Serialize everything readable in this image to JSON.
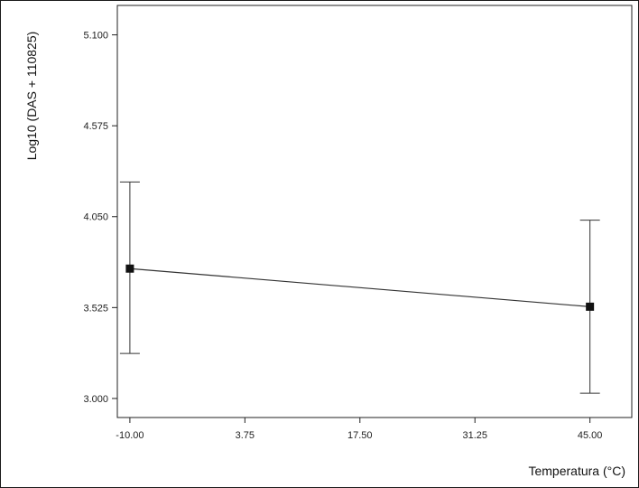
{
  "chart_data": {
    "type": "line",
    "xlabel": "Temperatura (°C)",
    "ylabel": "Log10 (DAS + 110825)",
    "x_ticks": [
      "-10.00",
      "3.75",
      "17.50",
      "31.25",
      "45.00"
    ],
    "y_ticks": [
      "5.100",
      "4.575",
      "4.050",
      "3.525",
      "3.000"
    ],
    "xlim": [
      -11.5,
      50
    ],
    "ylim": [
      2.89,
      5.27
    ],
    "series": [
      {
        "x": [
          -10,
          45
        ],
        "y": [
          3.75,
          3.53
        ],
        "err_low": [
          3.26,
          3.03
        ],
        "err_high": [
          4.25,
          4.03
        ]
      }
    ],
    "grid": false,
    "legend": false,
    "colors": {
      "line": "#333333",
      "marker": "#111111",
      "axis": "#222222",
      "frame": "#1a1a1a"
    }
  }
}
